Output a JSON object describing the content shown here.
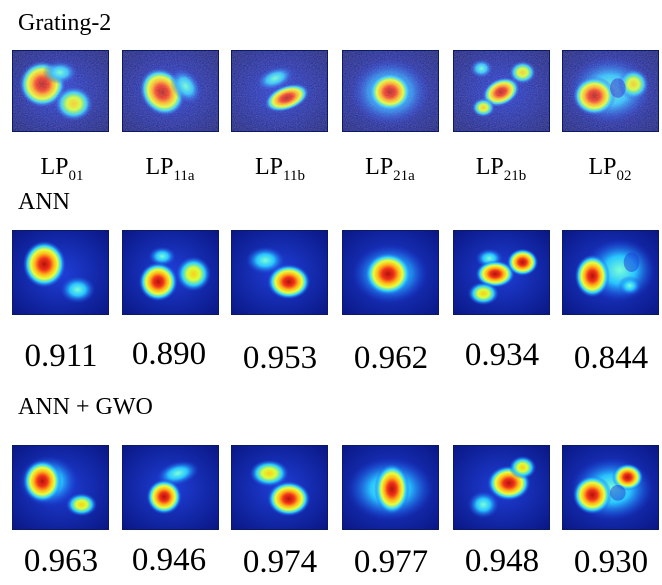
{
  "sections": {
    "grating_title": "Grating-2",
    "ann_title": "ANN",
    "ann_gwo_title": "ANN + GWO"
  },
  "modes": [
    {
      "base": "LP",
      "sub": "01"
    },
    {
      "base": "LP",
      "sub": "11a"
    },
    {
      "base": "LP",
      "sub": "11b"
    },
    {
      "base": "LP",
      "sub": "21a"
    },
    {
      "base": "LP",
      "sub": "21b"
    },
    {
      "base": "LP",
      "sub": "02"
    }
  ],
  "ann_scores": [
    "0.911",
    "0.890",
    "0.953",
    "0.962",
    "0.934",
    "0.844"
  ],
  "ann_gwo_scores": [
    "0.963",
    "0.946",
    "0.974",
    "0.977",
    "0.948",
    "0.930"
  ],
  "colors": {
    "background_blue": "#0a1f9e",
    "hot_red": "#c81a0a",
    "warm_yellow": "#f2e81a",
    "cool_cyan": "#2fc6ff"
  }
}
